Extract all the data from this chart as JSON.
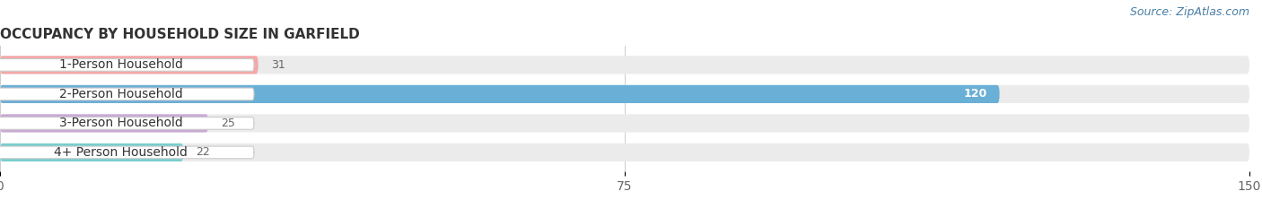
{
  "title": "OCCUPANCY BY HOUSEHOLD SIZE IN GARFIELD",
  "source": "Source: ZipAtlas.com",
  "categories": [
    "1-Person Household",
    "2-Person Household",
    "3-Person Household",
    "4+ Person Household"
  ],
  "values": [
    31,
    120,
    25,
    22
  ],
  "bar_colors": [
    "#f4a8a8",
    "#6aafd6",
    "#c9aad6",
    "#79cece"
  ],
  "label_bg_colors": [
    "#f4a8a8",
    "#6aafd6",
    "#c9aad6",
    "#79cece"
  ],
  "xlim": [
    0,
    150
  ],
  "xticks": [
    0,
    75,
    150
  ],
  "fig_bg_color": "#ffffff",
  "bar_bg_color": "#ebebeb",
  "bar_gap_color": "#ffffff",
  "title_fontsize": 11,
  "source_fontsize": 9,
  "tick_fontsize": 10,
  "label_fontsize": 10,
  "value_fontsize": 9,
  "bar_height": 0.62,
  "bar_spacing": 1.0
}
